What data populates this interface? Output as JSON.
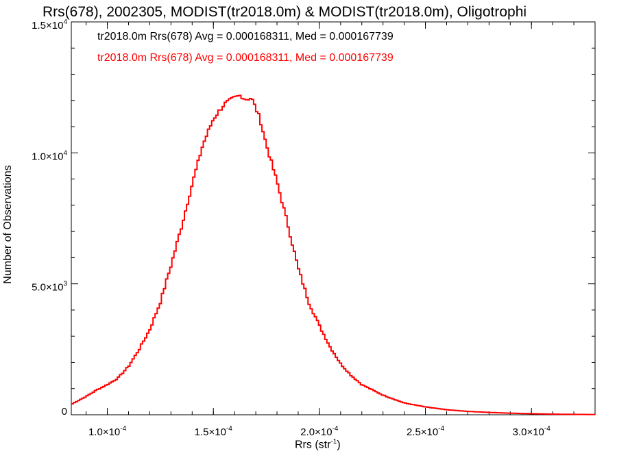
{
  "chart_data": {
    "type": "line",
    "title": "Rrs(678), 2002305, MODIST(tr2018.0m) & MODIST(tr2018.0m), Oligotrophi",
    "xlabel": "Rrs (str",
    "xlabel_sup": "-1",
    "xlabel_close": ")",
    "ylabel": "Number of Observations",
    "xlim": [
      8.3e-05,
      0.00033
    ],
    "ylim": [
      0,
      15000
    ],
    "x_ticks": [
      {
        "value": 0.0001,
        "label": "1.0×10",
        "exp": "-4"
      },
      {
        "value": 0.00015,
        "label": "1.5×10",
        "exp": "-4"
      },
      {
        "value": 0.0002,
        "label": "2.0×10",
        "exp": "-4"
      },
      {
        "value": 0.00025,
        "label": "2.5×10",
        "exp": "-4"
      },
      {
        "value": 0.0003,
        "label": "3.0×10",
        "exp": "-4"
      }
    ],
    "y_ticks": [
      {
        "value": 0,
        "label": "0",
        "exp": ""
      },
      {
        "value": 5000,
        "label": "5.0×10",
        "exp": "3"
      },
      {
        "value": 10000,
        "label": "1.0×10",
        "exp": "4"
      },
      {
        "value": 15000,
        "label": "1.5×10",
        "exp": "4"
      }
    ],
    "annotations": [
      {
        "text": "tr2018.0m Rrs(678) Avg = 0.000168311, Med = 0.000167739",
        "color": "#000000"
      },
      {
        "text": "tr2018.0m Rrs(678) Avg = 0.000168311, Med = 0.000167739",
        "color": "#ff0000"
      }
    ],
    "series": [
      {
        "color": "#ff0000",
        "style": "histogram-step",
        "x": [
          8.3e-05,
          9e-05,
          9.5e-05,
          0.0001,
          0.000105,
          0.00011,
          0.000115,
          0.00012,
          0.000125,
          0.00013,
          0.000135,
          0.00014,
          0.000145,
          0.00015,
          0.000155,
          0.00016,
          0.000163,
          0.000165,
          0.000168,
          0.00017,
          0.000172,
          0.000175,
          0.00018,
          0.000185,
          0.00019,
          0.000195,
          0.0002,
          0.000205,
          0.00021,
          0.000215,
          0.00022,
          0.00023,
          0.00024,
          0.00025,
          0.00026,
          0.00027,
          0.00028,
          0.00029,
          0.0003,
          0.00031,
          0.00032,
          0.00033
        ],
        "y": [
          400,
          700,
          950,
          1150,
          1400,
          1850,
          2500,
          3250,
          4300,
          5700,
          7200,
          8800,
          10300,
          11300,
          11850,
          12100,
          12200,
          12050,
          12100,
          11700,
          11300,
          10300,
          8900,
          7300,
          5600,
          4300,
          3400,
          2600,
          1950,
          1500,
          1150,
          750,
          450,
          300,
          190,
          130,
          90,
          60,
          40,
          25,
          15,
          10
        ]
      }
    ],
    "grid": false
  }
}
